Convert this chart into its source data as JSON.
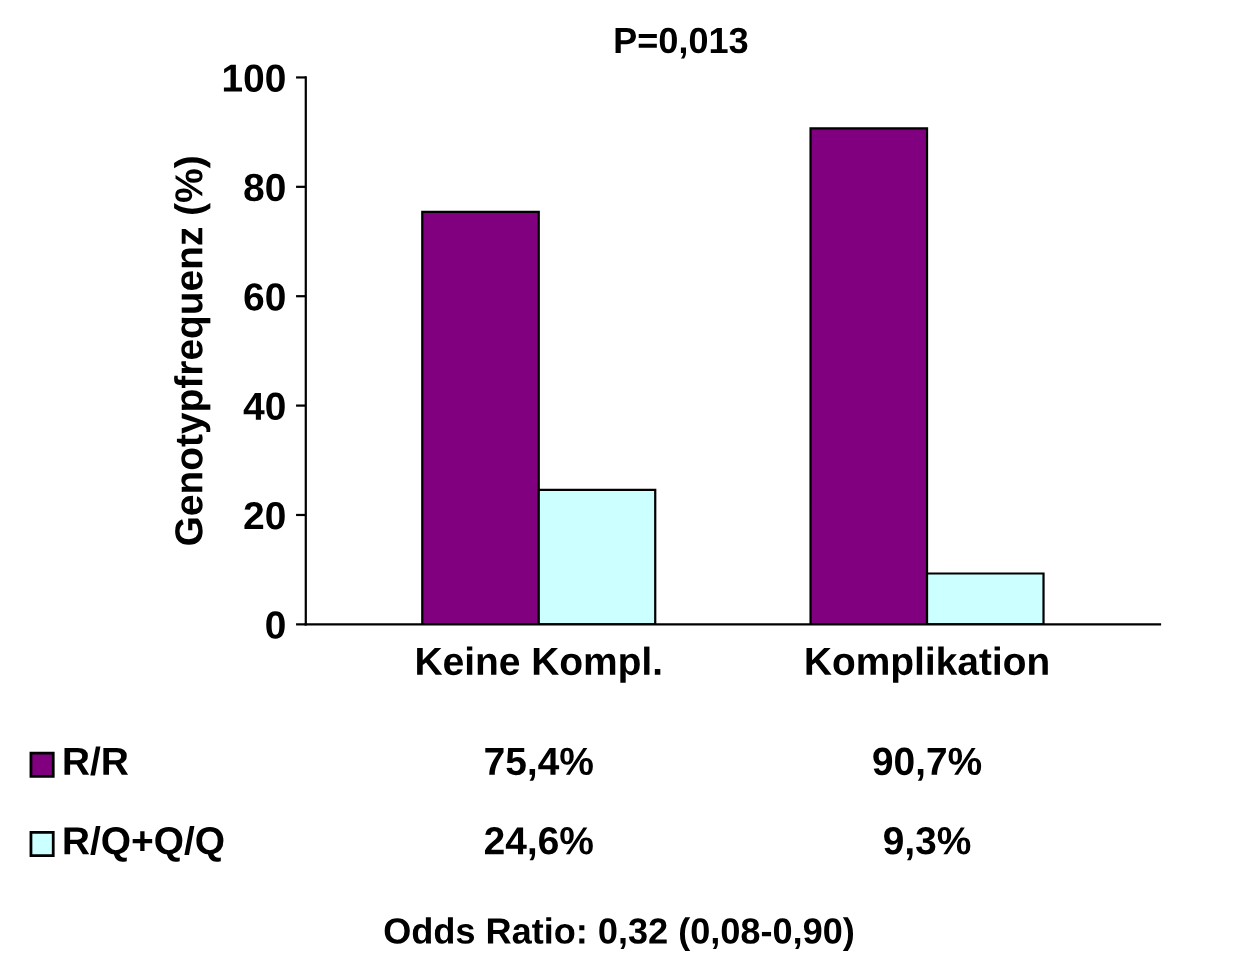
{
  "chart_data": {
    "type": "bar",
    "title": "P=0,013",
    "ylabel": "Genotypfrequenz (%)",
    "categories": [
      "Keine Kompl.",
      "Komplikation"
    ],
    "series": [
      {
        "name": "R/R",
        "color": "#800080",
        "values": [
          75.4,
          90.7
        ],
        "value_labels": [
          "75,4%",
          "90,7%"
        ]
      },
      {
        "name": "R/Q+Q/Q",
        "color": "#ccffff",
        "values": [
          24.6,
          9.3
        ],
        "value_labels": [
          "24,6%",
          "9,3%"
        ]
      }
    ],
    "ylim": [
      0,
      100
    ],
    "yticks": [
      0,
      20,
      40,
      60,
      80,
      100
    ],
    "grid": false,
    "legend": "bottom",
    "annotations": [
      "Odds Ratio: 0,32 (0,08-0,90)"
    ]
  }
}
